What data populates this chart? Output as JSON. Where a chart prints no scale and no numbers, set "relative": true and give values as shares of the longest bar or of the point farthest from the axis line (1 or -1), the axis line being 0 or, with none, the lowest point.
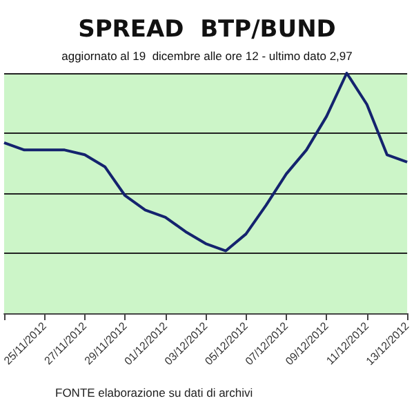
{
  "chart_data": {
    "type": "line",
    "title": "SPREAD  BTP/BUND",
    "subtitle": "aggiornato al 19  dicembre alle ore 12 - ultimo dato 2,97",
    "categories": [
      null,
      null,
      "25/11/2012",
      null,
      "27/11/2012",
      null,
      "29/11/2012",
      null,
      "01/12/2012",
      null,
      "03/12/2012",
      null,
      "05/12/2012",
      null,
      "07/12/2012",
      null,
      "09/12/2012",
      null,
      "11/12/2012",
      null,
      "13/12/2012"
    ],
    "series": [
      {
        "color": "#14236e",
        "values": [
          0.71,
          0.68,
          0.68,
          0.68,
          0.66,
          0.61,
          0.49,
          0.43,
          0.4,
          0.34,
          0.29,
          0.26,
          0.33,
          0.45,
          0.58,
          0.68,
          0.82,
          1,
          0.87,
          0.66,
          0.63
        ]
      }
    ],
    "relative": true,
    "grid": "y",
    "marker": "none",
    "line_style": "solid",
    "annotations": [
      "FONTE elaborazione su dati di archivi"
    ]
  }
}
